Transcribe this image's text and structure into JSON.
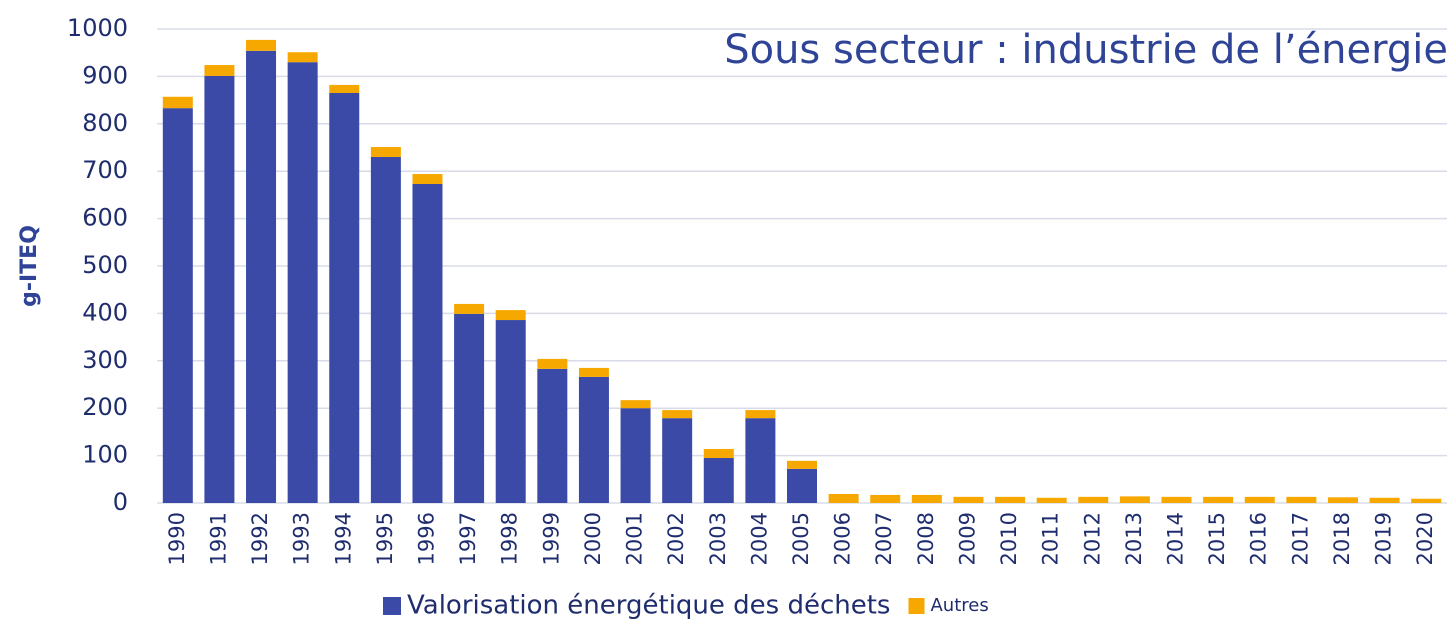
{
  "chart_data": {
    "type": "stacked_bar",
    "title": "Sous secteur : industrie de l’énergie",
    "y_label": "g-ITEQ",
    "categories": [
      "1990",
      "1991",
      "1992",
      "1993",
      "1994",
      "1995",
      "1996",
      "1997",
      "1998",
      "1999",
      "2000",
      "2001",
      "2002",
      "2003",
      "2004",
      "2005",
      "2006",
      "2007",
      "2008",
      "2009",
      "2010",
      "2011",
      "2012",
      "2013",
      "2014",
      "2015",
      "2016",
      "2017",
      "2018",
      "2019",
      "2020"
    ],
    "series": [
      {
        "name": "Valorisation énergétique des déchets",
        "color": "#3a4aa6",
        "values": [
          833,
          901,
          954,
          930,
          865,
          730,
          673,
          399,
          386,
          283,
          266,
          200,
          179,
          95,
          179,
          72,
          0,
          0,
          0,
          0,
          0,
          0,
          0,
          0,
          0,
          0,
          0,
          0,
          0,
          0,
          0
        ]
      },
      {
        "name": "Autres",
        "color": "#f6a800",
        "values": [
          24,
          23,
          23,
          21,
          17,
          21,
          21,
          21,
          21,
          21,
          19,
          17,
          17,
          19,
          17,
          17,
          19,
          17,
          17,
          13,
          13,
          11,
          13,
          14,
          13,
          13,
          13,
          13,
          12,
          11,
          9
        ]
      }
    ],
    "ylim": [
      0,
      1000
    ],
    "yticks": [
      0,
      100,
      200,
      300,
      400,
      500,
      600,
      700,
      800,
      900,
      1000
    ],
    "grid": true
  }
}
